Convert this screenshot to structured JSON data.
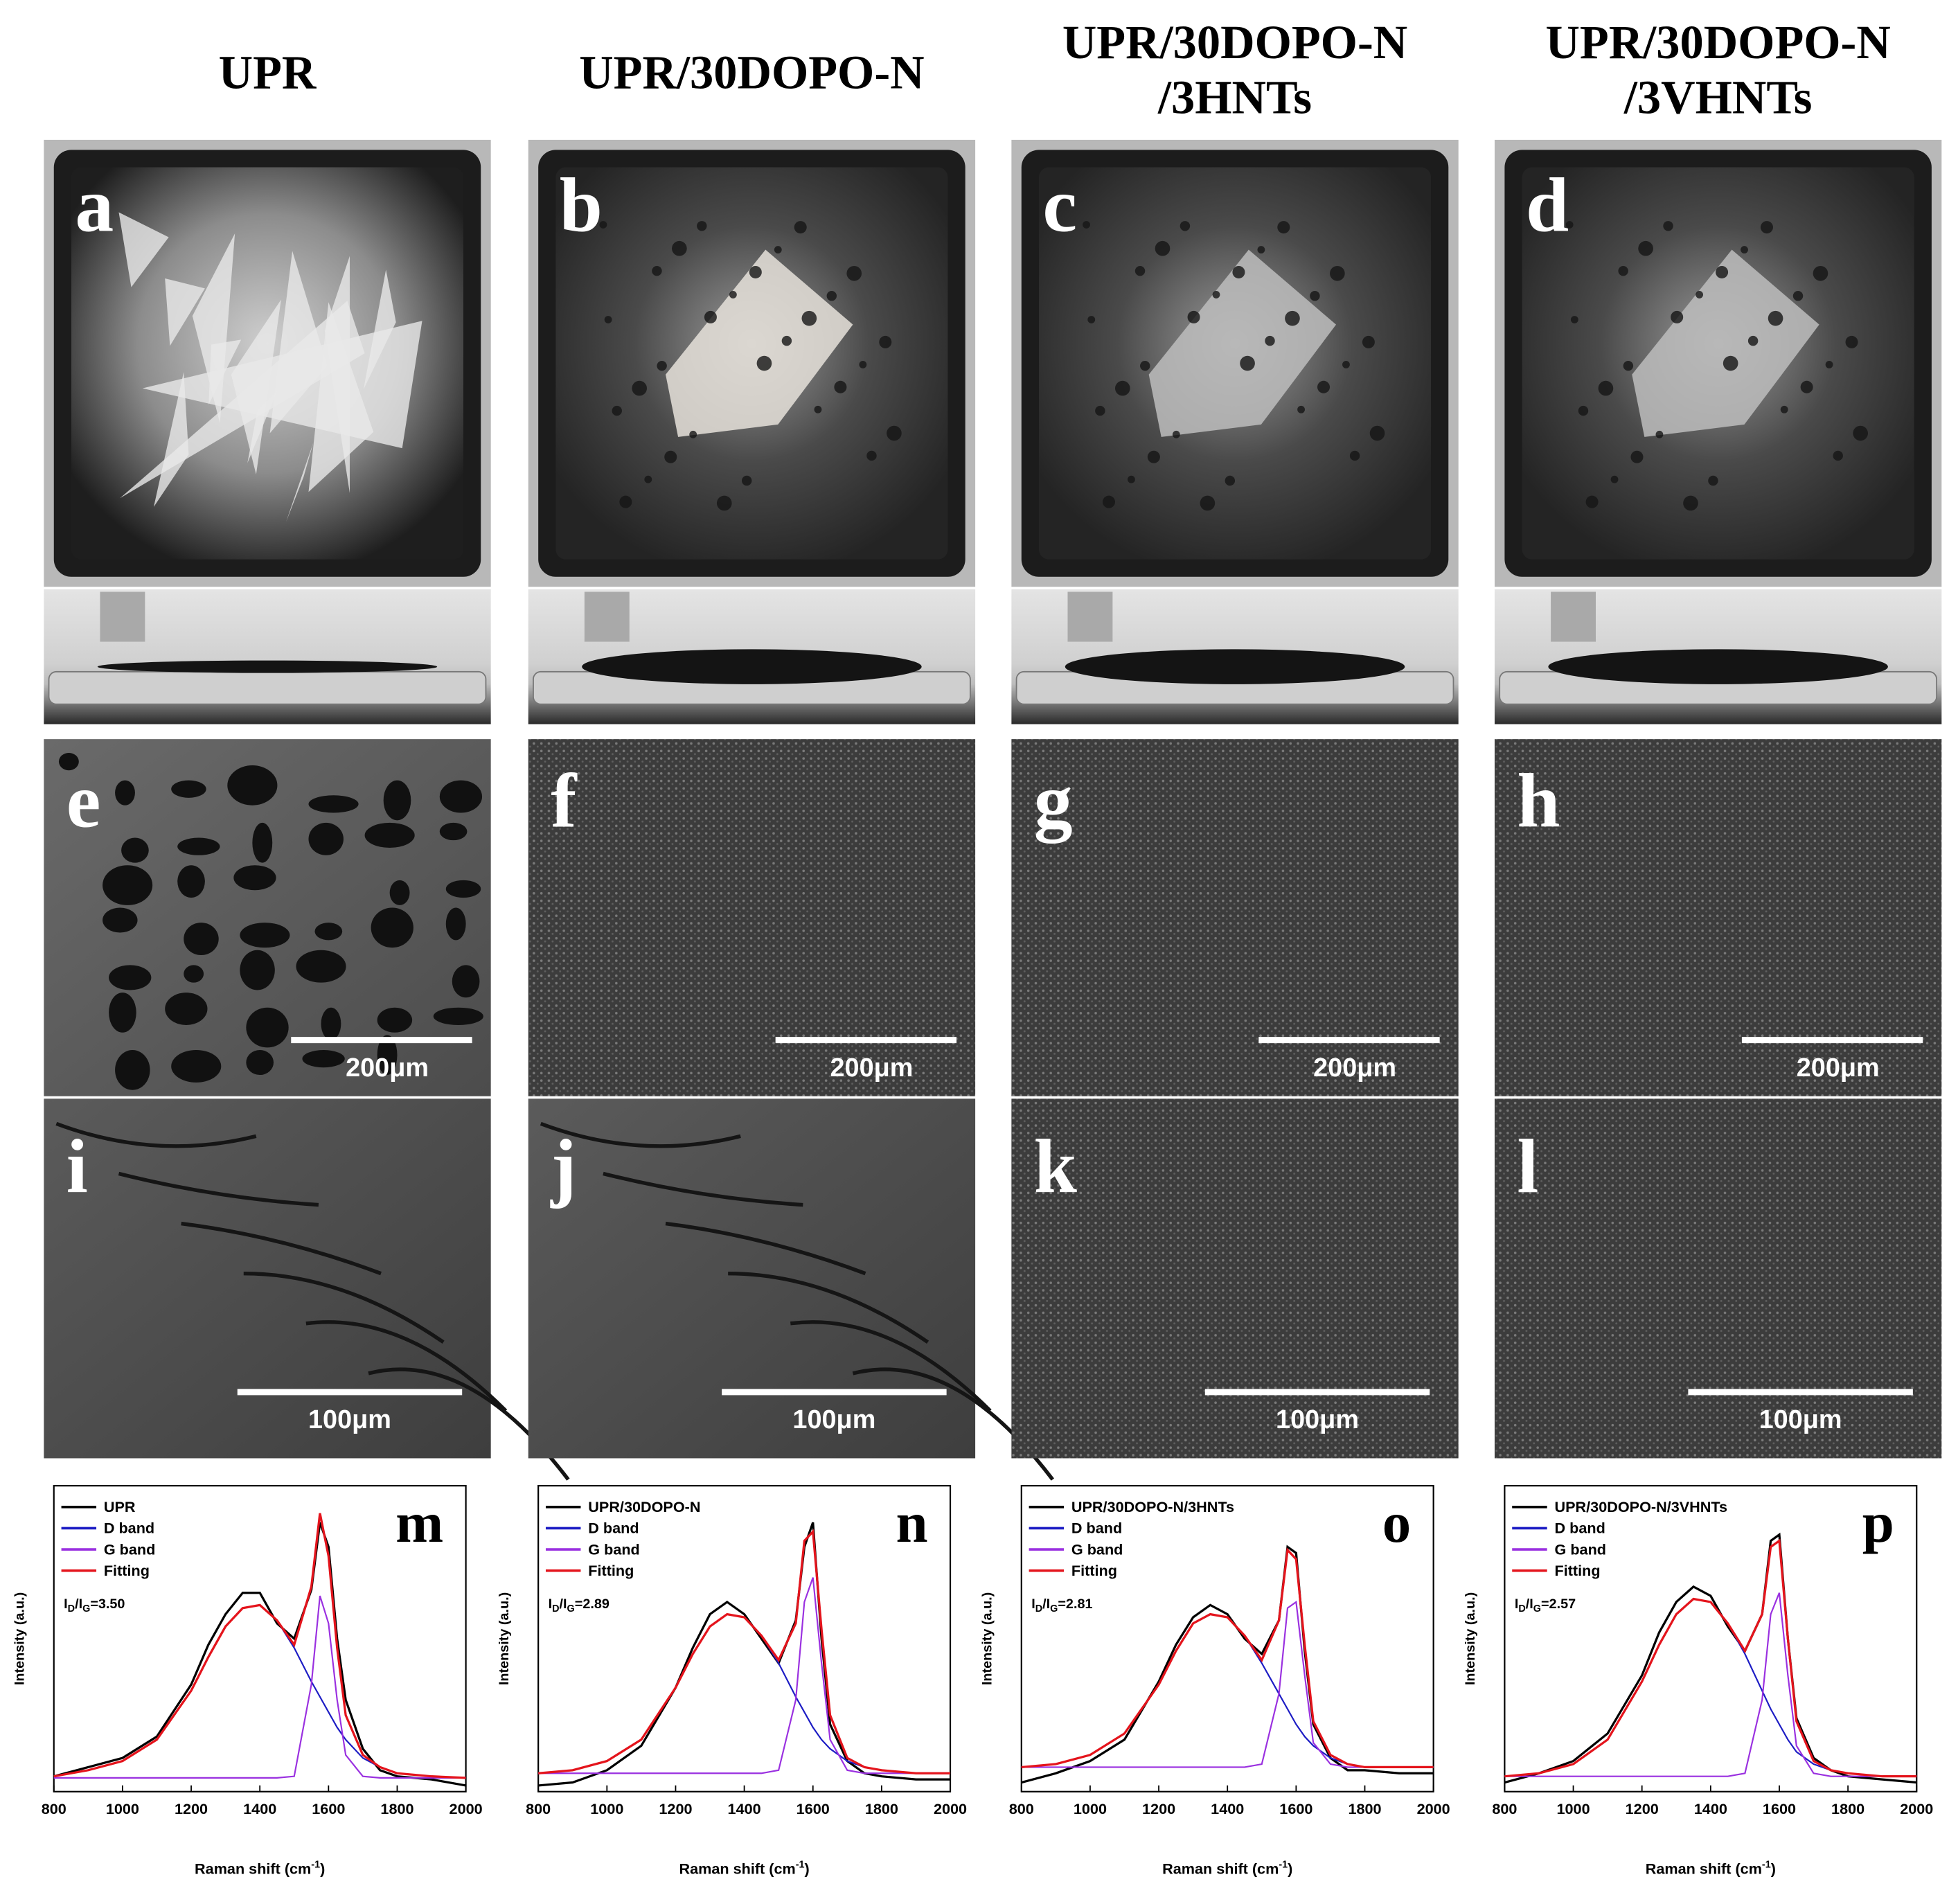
{
  "columns": [
    {
      "title": [
        "UPR"
      ],
      "photo_label": "a",
      "sem_low": {
        "label": "e",
        "scale": "200μm"
      },
      "sem_high": {
        "label": "i",
        "scale": "100μm"
      }
    },
    {
      "title": [
        "UPR/30DOPO-N"
      ],
      "photo_label": "b",
      "sem_low": {
        "label": "f",
        "scale": "200μm"
      },
      "sem_high": {
        "label": "j",
        "scale": "100μm"
      }
    },
    {
      "title": [
        "UPR/30DOPO-N",
        "/3HNTs"
      ],
      "photo_label": "c",
      "sem_low": {
        "label": "g",
        "scale": "200μm"
      },
      "sem_high": {
        "label": "k",
        "scale": "100μm"
      }
    },
    {
      "title": [
        "UPR/30DOPO-N",
        "/3VHNTs"
      ],
      "photo_label": "d",
      "sem_low": {
        "label": "h",
        "scale": "200μm"
      },
      "sem_high": {
        "label": "l",
        "scale": "100μm"
      }
    }
  ],
  "chart_data": [
    {
      "type": "line",
      "panel": "m",
      "x": [
        800,
        900,
        1000,
        1100,
        1200,
        1250,
        1300,
        1350,
        1400,
        1450,
        1500,
        1550,
        1575,
        1600,
        1625,
        1650,
        1700,
        1750,
        1800,
        1900,
        2000
      ],
      "series": [
        {
          "name": "UPR",
          "color": "#000000",
          "values": [
            0.05,
            0.08,
            0.11,
            0.18,
            0.35,
            0.48,
            0.58,
            0.65,
            0.65,
            0.55,
            0.5,
            0.66,
            0.88,
            0.8,
            0.5,
            0.3,
            0.14,
            0.07,
            0.05,
            0.04,
            0.02
          ]
        },
        {
          "name": "D band",
          "color": "#1c1cc4",
          "values": [
            0.05,
            0.07,
            0.1,
            0.17,
            0.33,
            0.44,
            0.54,
            0.6,
            0.61,
            0.56,
            0.47,
            0.36,
            0.31,
            0.26,
            0.21,
            0.17,
            0.11,
            0.08,
            0.06,
            0.05,
            0.045
          ]
        },
        {
          "name": "G band",
          "color": "#9a30e0",
          "values": [
            0.045,
            0.045,
            0.045,
            0.045,
            0.045,
            0.045,
            0.045,
            0.045,
            0.045,
            0.045,
            0.05,
            0.35,
            0.64,
            0.55,
            0.3,
            0.12,
            0.05,
            0.045,
            0.045,
            0.045,
            0.045
          ]
        },
        {
          "name": "Fitting",
          "color": "#e4141c",
          "values": [
            0.05,
            0.07,
            0.1,
            0.17,
            0.33,
            0.44,
            0.54,
            0.6,
            0.61,
            0.56,
            0.48,
            0.67,
            0.91,
            0.77,
            0.47,
            0.25,
            0.12,
            0.08,
            0.06,
            0.05,
            0.045
          ]
        }
      ],
      "annotation": [
        "I",
        "D",
        "/I",
        "G",
        "=3.50"
      ],
      "xlim": [
        800,
        2000
      ],
      "xticks": [
        800,
        1000,
        1200,
        1400,
        1600,
        1800,
        2000
      ],
      "ylim": [
        0,
        1
      ],
      "xlabel": [
        "Raman shift (cm",
        "-1",
        ")"
      ],
      "ylabel": "Intensity (a.u.)"
    },
    {
      "type": "line",
      "panel": "n",
      "x": [
        800,
        900,
        1000,
        1100,
        1200,
        1250,
        1300,
        1350,
        1400,
        1450,
        1500,
        1550,
        1575,
        1600,
        1625,
        1650,
        1700,
        1750,
        1800,
        1900,
        2000
      ],
      "series": [
        {
          "name": "UPR/30DOPO-N",
          "color": "#000000",
          "values": [
            0.02,
            0.03,
            0.07,
            0.15,
            0.34,
            0.47,
            0.58,
            0.62,
            0.58,
            0.5,
            0.42,
            0.56,
            0.8,
            0.88,
            0.5,
            0.22,
            0.1,
            0.06,
            0.05,
            0.04,
            0.04
          ]
        },
        {
          "name": "D band",
          "color": "#1c1cc4",
          "values": [
            0.06,
            0.07,
            0.1,
            0.17,
            0.34,
            0.45,
            0.54,
            0.58,
            0.57,
            0.51,
            0.42,
            0.31,
            0.26,
            0.21,
            0.17,
            0.14,
            0.1,
            0.08,
            0.07,
            0.06,
            0.06
          ]
        },
        {
          "name": "G band",
          "color": "#9a30e0",
          "values": [
            0.06,
            0.06,
            0.06,
            0.06,
            0.06,
            0.06,
            0.06,
            0.06,
            0.06,
            0.06,
            0.07,
            0.3,
            0.62,
            0.7,
            0.42,
            0.17,
            0.07,
            0.06,
            0.06,
            0.06,
            0.06
          ]
        },
        {
          "name": "Fitting",
          "color": "#e4141c",
          "values": [
            0.06,
            0.07,
            0.1,
            0.17,
            0.34,
            0.45,
            0.54,
            0.58,
            0.57,
            0.51,
            0.43,
            0.55,
            0.82,
            0.85,
            0.53,
            0.25,
            0.11,
            0.08,
            0.07,
            0.06,
            0.06
          ]
        }
      ],
      "annotation": [
        "I",
        "D",
        "/I",
        "G",
        "=2.89"
      ],
      "xlim": [
        800,
        2000
      ],
      "xticks": [
        800,
        1000,
        1200,
        1400,
        1600,
        1800,
        2000
      ],
      "ylim": [
        0,
        1
      ],
      "xlabel": [
        "Raman shift (cm",
        "-1",
        ")"
      ],
      "ylabel": "Intensity (a.u.)"
    },
    {
      "type": "line",
      "panel": "o",
      "x": [
        800,
        900,
        1000,
        1100,
        1200,
        1250,
        1300,
        1350,
        1400,
        1450,
        1500,
        1550,
        1575,
        1600,
        1625,
        1650,
        1700,
        1750,
        1800,
        1900,
        2000
      ],
      "series": [
        {
          "name": "UPR/30DOPO-N/3HNTs",
          "color": "#000000",
          "values": [
            0.03,
            0.06,
            0.1,
            0.17,
            0.36,
            0.48,
            0.57,
            0.61,
            0.58,
            0.5,
            0.45,
            0.56,
            0.8,
            0.78,
            0.46,
            0.22,
            0.11,
            0.07,
            0.07,
            0.06,
            0.06
          ]
        },
        {
          "name": "D band",
          "color": "#1c1cc4",
          "values": [
            0.08,
            0.09,
            0.12,
            0.19,
            0.35,
            0.46,
            0.55,
            0.58,
            0.57,
            0.51,
            0.42,
            0.32,
            0.27,
            0.22,
            0.18,
            0.15,
            0.11,
            0.09,
            0.08,
            0.08,
            0.08
          ]
        },
        {
          "name": "G band",
          "color": "#9a30e0",
          "values": [
            0.08,
            0.08,
            0.08,
            0.08,
            0.08,
            0.08,
            0.08,
            0.08,
            0.08,
            0.08,
            0.09,
            0.32,
            0.6,
            0.62,
            0.38,
            0.16,
            0.09,
            0.08,
            0.08,
            0.08,
            0.08
          ]
        },
        {
          "name": "Fitting",
          "color": "#e4141c",
          "values": [
            0.08,
            0.09,
            0.12,
            0.19,
            0.35,
            0.46,
            0.55,
            0.58,
            0.57,
            0.51,
            0.43,
            0.56,
            0.79,
            0.76,
            0.48,
            0.23,
            0.12,
            0.09,
            0.08,
            0.08,
            0.08
          ]
        }
      ],
      "annotation": [
        "I",
        "D",
        "/I",
        "G",
        "=2.81"
      ],
      "xlim": [
        800,
        2000
      ],
      "xticks": [
        800,
        1000,
        1200,
        1400,
        1600,
        1800,
        2000
      ],
      "ylim": [
        0,
        1
      ],
      "xlabel": [
        "Raman shift (cm",
        "-1",
        ")"
      ],
      "ylabel": "Intensity (a.u.)"
    },
    {
      "type": "line",
      "panel": "p",
      "x": [
        800,
        900,
        1000,
        1100,
        1200,
        1250,
        1300,
        1350,
        1400,
        1450,
        1500,
        1550,
        1575,
        1600,
        1625,
        1650,
        1700,
        1750,
        1800,
        1900,
        2000
      ],
      "series": [
        {
          "name": "UPR/30DOPO-N/3VHNTs",
          "color": "#000000",
          "values": [
            0.03,
            0.06,
            0.1,
            0.19,
            0.38,
            0.52,
            0.62,
            0.67,
            0.64,
            0.54,
            0.46,
            0.58,
            0.82,
            0.84,
            0.5,
            0.24,
            0.11,
            0.07,
            0.05,
            0.04,
            0.03
          ]
        },
        {
          "name": "D band",
          "color": "#1c1cc4",
          "values": [
            0.05,
            0.06,
            0.09,
            0.17,
            0.36,
            0.48,
            0.58,
            0.63,
            0.62,
            0.55,
            0.45,
            0.33,
            0.27,
            0.22,
            0.17,
            0.13,
            0.09,
            0.07,
            0.06,
            0.05,
            0.05
          ]
        },
        {
          "name": "G band",
          "color": "#9a30e0",
          "values": [
            0.05,
            0.05,
            0.05,
            0.05,
            0.05,
            0.05,
            0.05,
            0.05,
            0.05,
            0.05,
            0.06,
            0.3,
            0.58,
            0.65,
            0.38,
            0.15,
            0.06,
            0.05,
            0.05,
            0.05,
            0.05
          ]
        },
        {
          "name": "Fitting",
          "color": "#e4141c",
          "values": [
            0.05,
            0.06,
            0.09,
            0.17,
            0.36,
            0.48,
            0.58,
            0.63,
            0.62,
            0.55,
            0.46,
            0.58,
            0.8,
            0.82,
            0.5,
            0.23,
            0.1,
            0.07,
            0.06,
            0.05,
            0.05
          ]
        }
      ],
      "annotation": [
        "I",
        "D",
        "/I",
        "G",
        "=2.57"
      ],
      "xlim": [
        800,
        2000
      ],
      "xticks": [
        800,
        1000,
        1200,
        1400,
        1600,
        1800,
        2000
      ],
      "ylim": [
        0,
        1
      ],
      "xlabel": [
        "Raman shift (cm",
        "-1",
        ")"
      ],
      "ylabel": "Intensity (a.u.)"
    }
  ]
}
